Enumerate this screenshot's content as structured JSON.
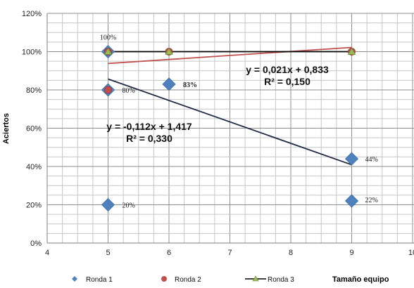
{
  "chart_data": {
    "type": "scatter",
    "title": "",
    "xlabel": "Tamaño equipo",
    "ylabel": "Aciertos",
    "xlim": [
      4,
      10
    ],
    "ylim": [
      0,
      1.2
    ],
    "x_ticks": [
      "4",
      "5",
      "6",
      "7",
      "8",
      "9",
      "10"
    ],
    "y_ticks": [
      "0%",
      "20%",
      "40%",
      "60%",
      "80%",
      "100%",
      "120%"
    ],
    "grid": true,
    "legend_position": "bottom",
    "series": [
      {
        "name": "Ronda 1",
        "marker": "diamond",
        "color": "#4f81bd",
        "points": [
          {
            "x": 5,
            "y": 1.0,
            "label": "100%"
          },
          {
            "x": 5,
            "y": 0.8,
            "label": "80%"
          },
          {
            "x": 5,
            "y": 0.2,
            "label": "20%"
          },
          {
            "x": 6,
            "y": 0.83,
            "label": "83%"
          },
          {
            "x": 9,
            "y": 0.44,
            "label": "44%"
          },
          {
            "x": 9,
            "y": 0.22,
            "label": "22%"
          }
        ]
      },
      {
        "name": "Ronda 2",
        "marker": "circle",
        "color": "#c0504d",
        "points": [
          {
            "x": 5,
            "y": 1.0
          },
          {
            "x": 5,
            "y": 0.8
          },
          {
            "x": 6,
            "y": 1.0
          },
          {
            "x": 9,
            "y": 1.0
          }
        ]
      },
      {
        "name": "Ronda 3",
        "marker": "triangle",
        "line": true,
        "color": "#9bbb59",
        "line_color": "#000000",
        "points": [
          {
            "x": 5,
            "y": 1.0
          },
          {
            "x": 6,
            "y": 1.0
          },
          {
            "x": 9,
            "y": 1.0
          }
        ]
      }
    ],
    "trendlines": [
      {
        "series": "Ronda 1",
        "slope": -0.112,
        "intercept": 1.417,
        "x_range": [
          5,
          9
        ],
        "color": "#1f2a44",
        "equation": "y = -0,112x + 1,417",
        "r2": "R² = 0,330"
      },
      {
        "series": "Ronda 2",
        "slope": 0.021,
        "intercept": 0.833,
        "x_range": [
          5,
          9
        ],
        "color": "#c0504d",
        "equation": "y = 0,021x + 0,833",
        "r2": "R² = 0,150"
      }
    ]
  }
}
